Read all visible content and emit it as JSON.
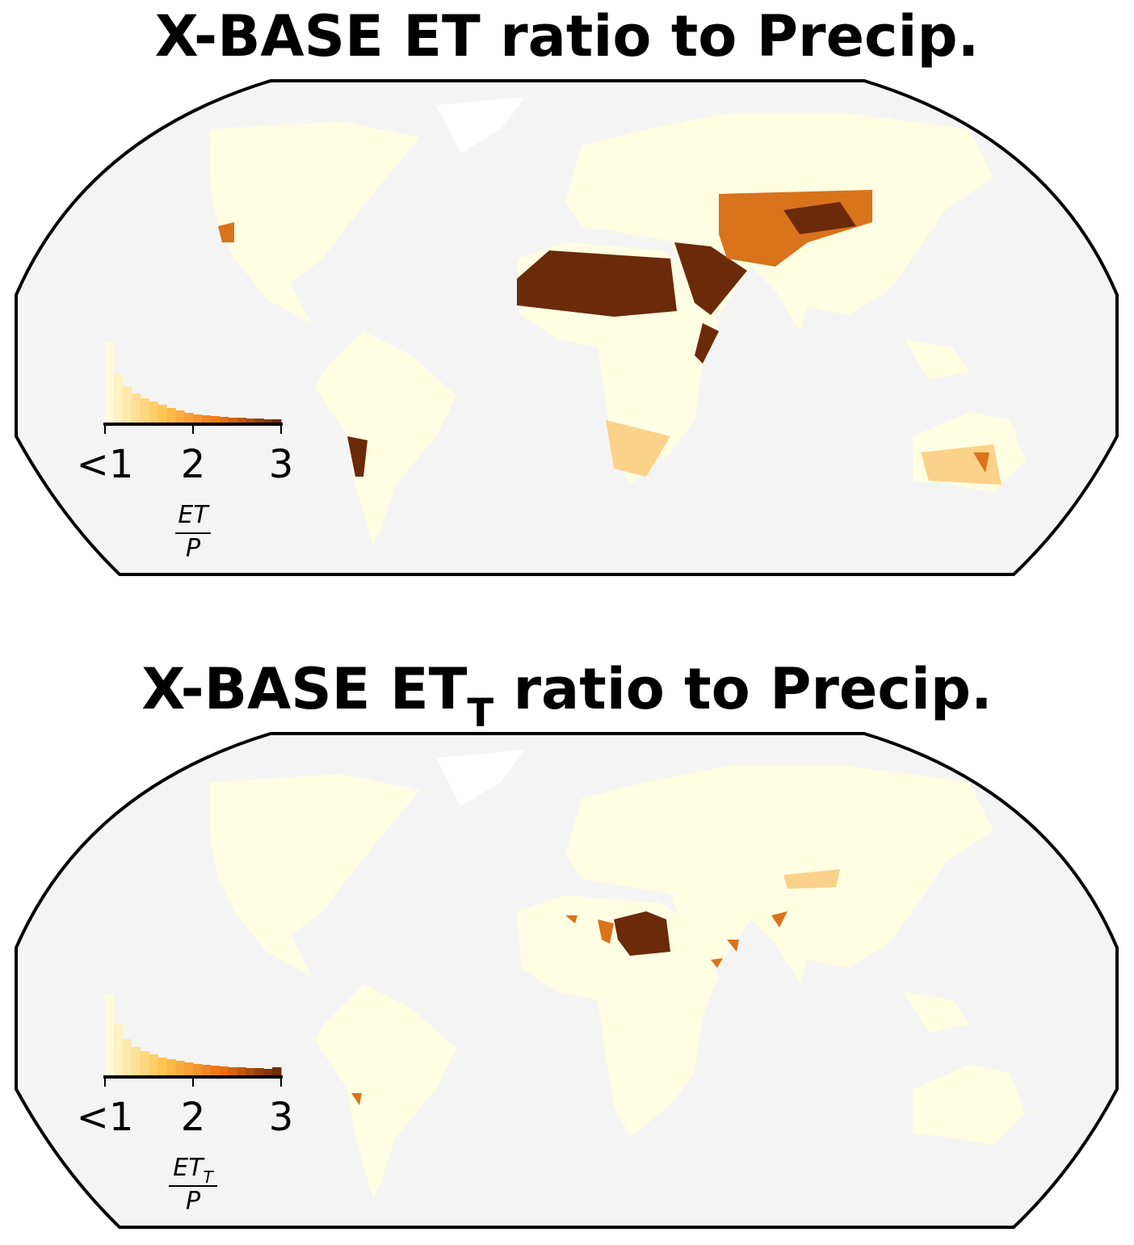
{
  "panels": [
    {
      "title": "X-BASE ET ratio to Precip.",
      "colorbar_label": {
        "num": "ET",
        "den": "P"
      },
      "histogram": {
        "bins": [
          1.0,
          1.1,
          1.2,
          1.3,
          1.4,
          1.5,
          1.6,
          1.7,
          1.8,
          1.9,
          2.0,
          2.1,
          2.2,
          2.3,
          2.4,
          2.5,
          2.6,
          2.7,
          2.8,
          2.9,
          3.0
        ],
        "counts": [
          100,
          60,
          45,
          36,
          30,
          26,
          22,
          18,
          15,
          12,
          10,
          9,
          8,
          7,
          6,
          6,
          5,
          5,
          4,
          4
        ]
      },
      "xlim": [
        1,
        3
      ],
      "xticks": [
        {
          "value": 1,
          "label": "<1"
        },
        2,
        3
      ],
      "colormap": [
        "#ffffe5",
        "#fec44f",
        "#ec7014",
        "#662506"
      ]
    },
    {
      "title": {
        "main": "X-BASE ET",
        "sub": "T",
        "rest": " ratio to Precip."
      },
      "colorbar_label": {
        "num": "ET",
        "num_sub": "T",
        "den": "P"
      },
      "histogram": {
        "bins": [
          1.0,
          1.1,
          1.2,
          1.3,
          1.4,
          1.5,
          1.6,
          1.7,
          1.8,
          1.9,
          2.0,
          2.1,
          2.2,
          2.3,
          2.4,
          2.5,
          2.6,
          2.7,
          2.8,
          2.9,
          3.0
        ],
        "counts": [
          100,
          65,
          45,
          35,
          30,
          26,
          22,
          20,
          18,
          16,
          14,
          13,
          12,
          11,
          10,
          10,
          9,
          9,
          8,
          10
        ]
      },
      "xlim": [
        1,
        3
      ],
      "xticks": [
        {
          "value": 1,
          "label": "<1"
        },
        2,
        3
      ],
      "colormap": [
        "#ffffe5",
        "#fec44f",
        "#ec7014",
        "#662506"
      ]
    }
  ]
}
